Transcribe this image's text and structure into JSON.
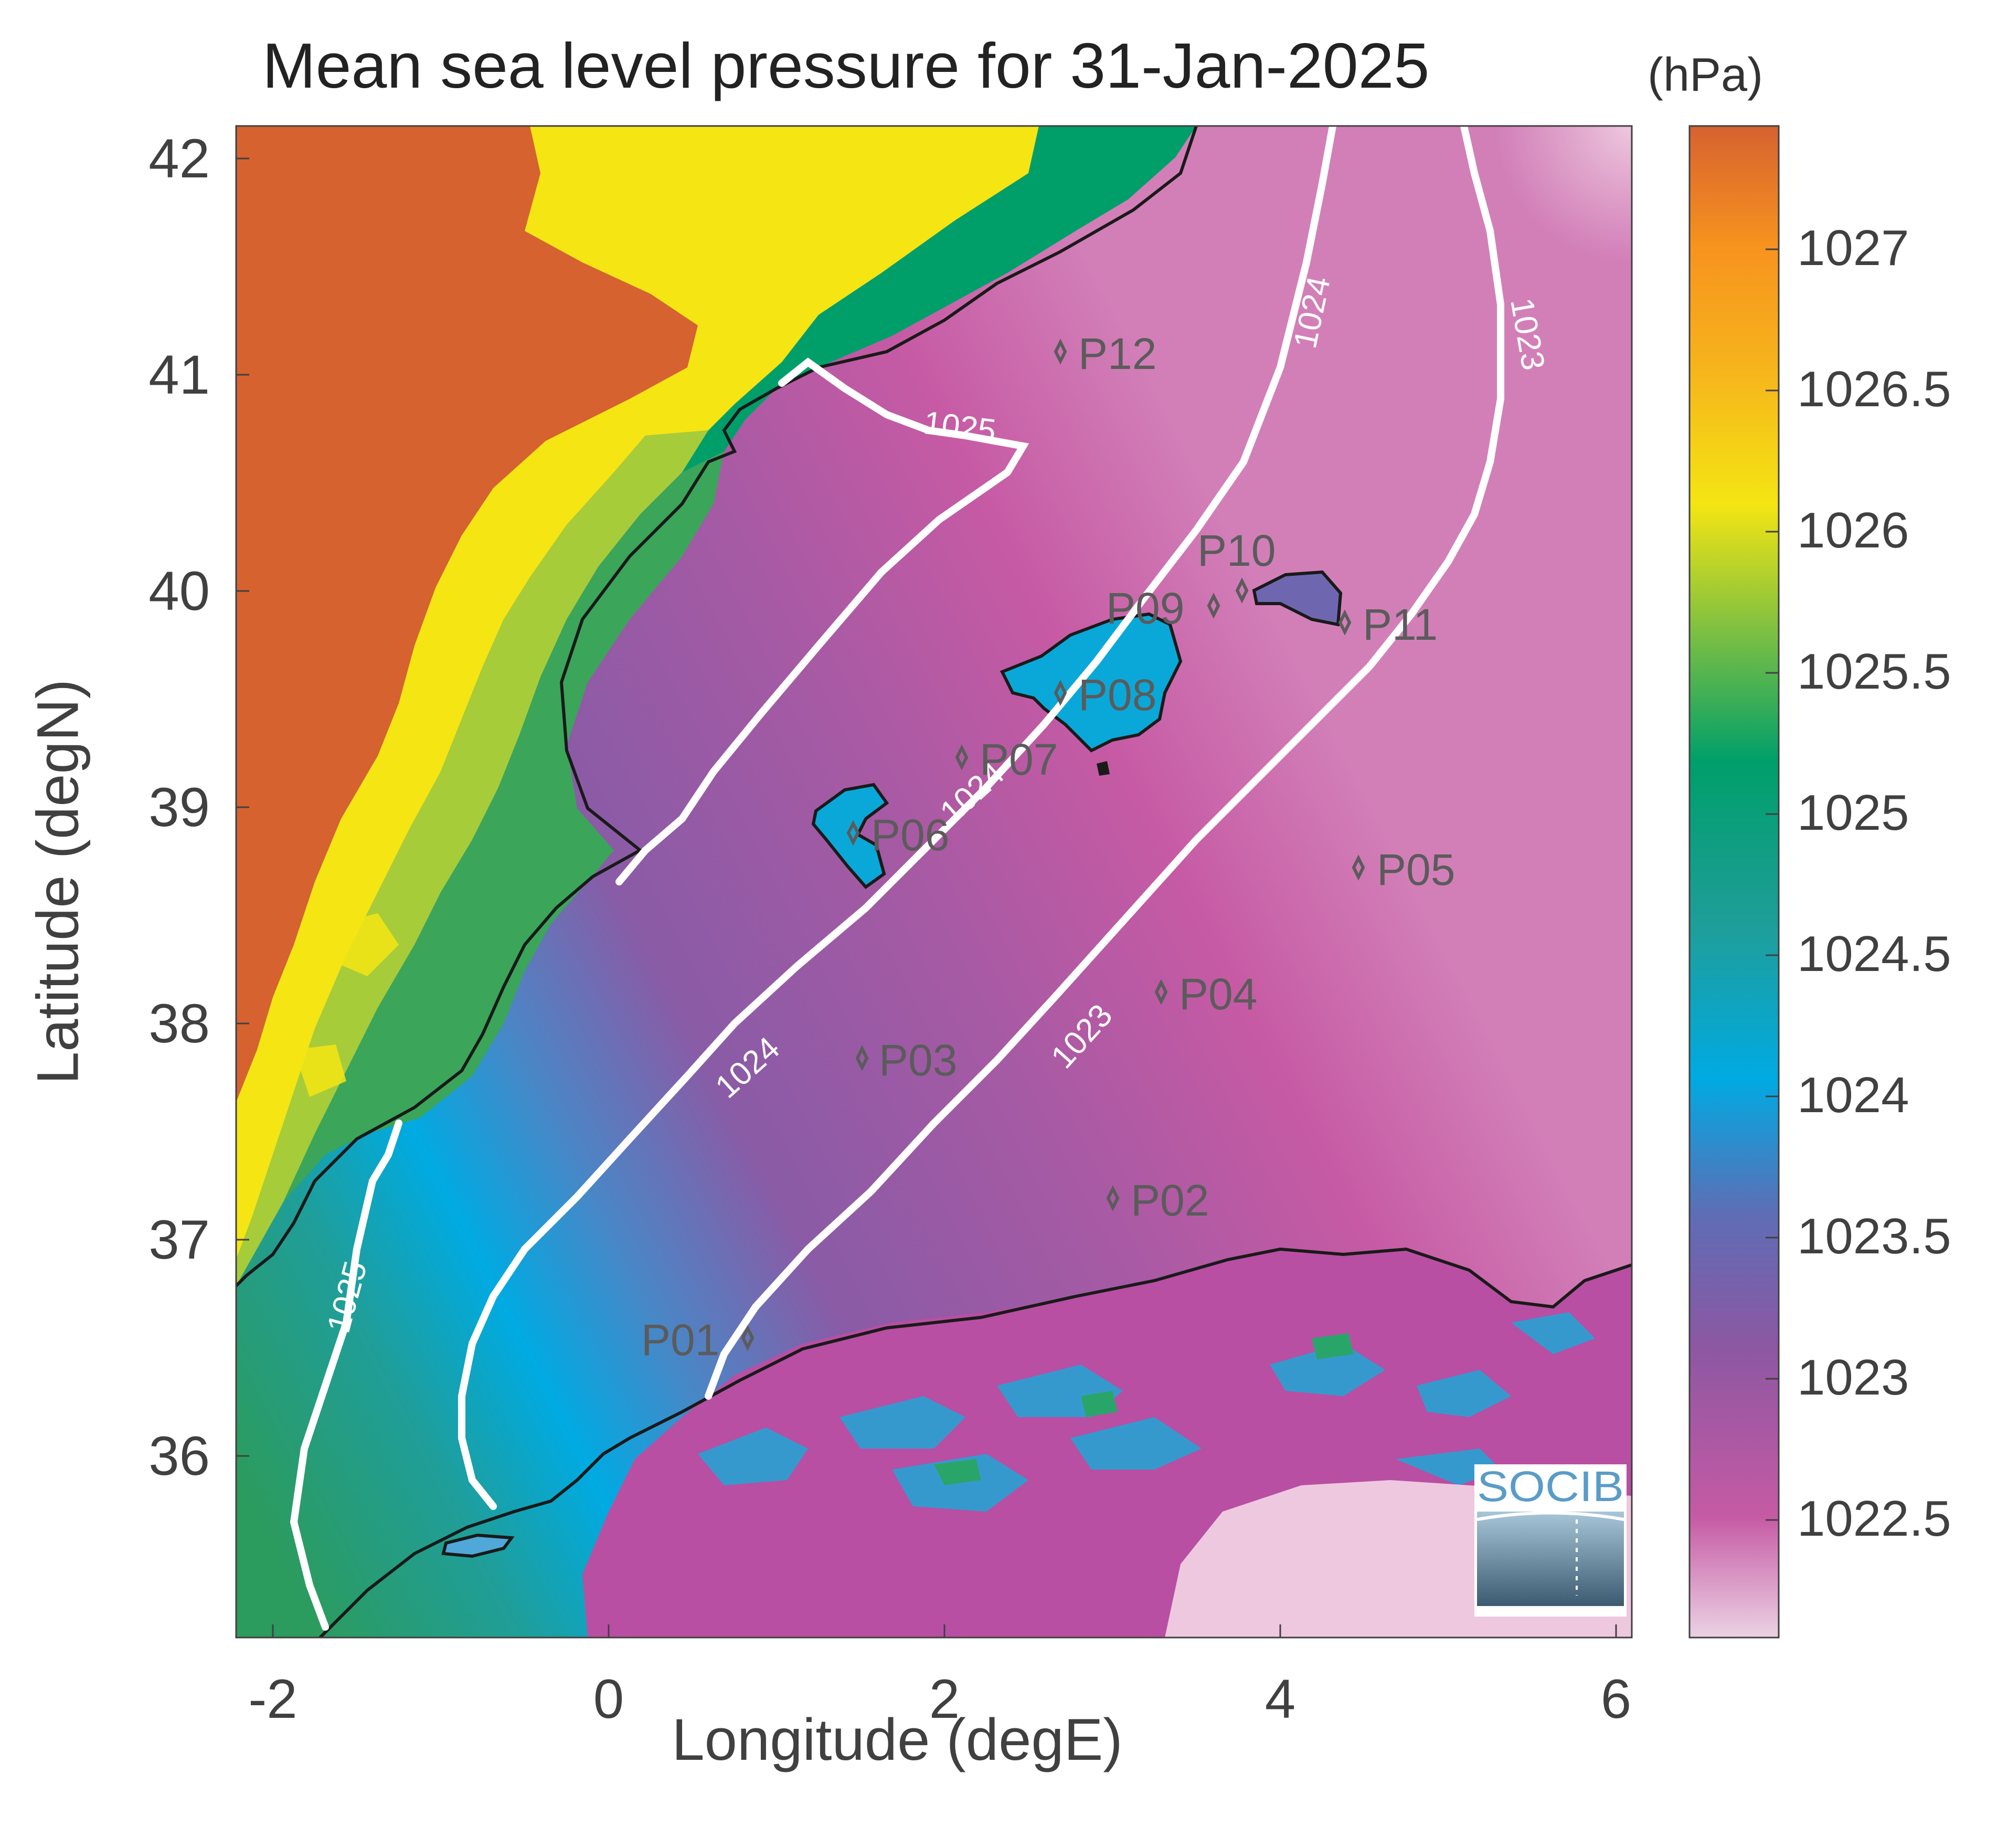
{
  "title": "Mean sea level pressure for 31-Jan-2025",
  "colorbar_unit": "(hPa)",
  "x_axis": {
    "label": "Longitude (degE)",
    "ticks": [
      "-2",
      "0",
      "2",
      "4",
      "6"
    ],
    "range": [
      -2.2,
      6.1
    ]
  },
  "y_axis": {
    "label": "Latitude (degN)",
    "ticks": [
      "42",
      "41",
      "40",
      "39",
      "38",
      "37",
      "36"
    ],
    "range": [
      35.2,
      42.15
    ]
  },
  "colorbar": {
    "ticks": [
      "1027",
      "1026.5",
      "1026",
      "1025.5",
      "1025",
      "1024.5",
      "1024",
      "1023.5",
      "1023",
      "1022.5"
    ],
    "range": [
      1022.05,
      1027.4
    ],
    "colors": [
      "#E8BED8",
      "#C65AA4",
      "#8E57A2",
      "#5E6DB5",
      "#00AAE2",
      "#1F9E9A",
      "#009F6A",
      "#76BD45",
      "#F4E513",
      "#F7931E",
      "#D66230"
    ]
  },
  "contour_labels": [
    "1025",
    "1025",
    "1024",
    "1024",
    "1024",
    "1023",
    "1023"
  ],
  "stations": [
    "P01",
    "P02",
    "P03",
    "P04",
    "P05",
    "P06",
    "P07",
    "P08",
    "P09",
    "P10",
    "P11",
    "P12"
  ],
  "logo_text": "SOCIB",
  "colors": {
    "land_high": "#D66230",
    "ocean_min": "#E8BED8",
    "contour": "#ffffff",
    "coast": "#1a1a1a",
    "station": "#5b5b5b",
    "logo_text": "#5A9CC7"
  }
}
